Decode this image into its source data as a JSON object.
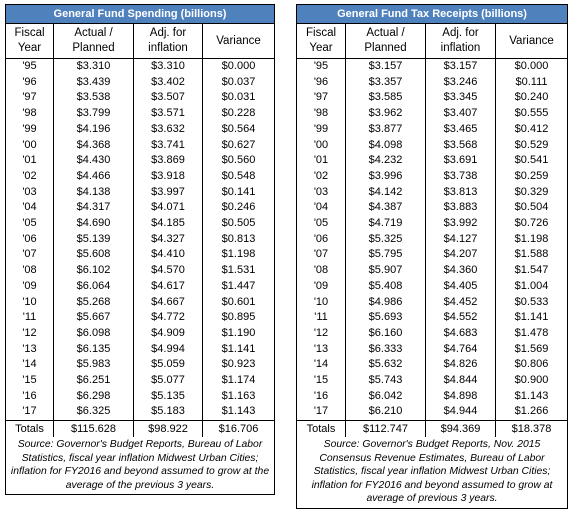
{
  "spending": {
    "title": "General Fund Spending (billions)",
    "headers": [
      "Fiscal Year",
      "Actual / Planned",
      "Adj. for inflation",
      "Variance"
    ],
    "rows": [
      [
        "'95",
        "$3.310",
        "$3.310",
        "$0.000"
      ],
      [
        "'96",
        "$3.439",
        "$3.402",
        "$0.037"
      ],
      [
        "'97",
        "$3.538",
        "$3.507",
        "$0.031"
      ],
      [
        "'98",
        "$3.799",
        "$3.571",
        "$0.228"
      ],
      [
        "'99",
        "$4.196",
        "$3.632",
        "$0.564"
      ],
      [
        "'00",
        "$4.368",
        "$3.741",
        "$0.627"
      ],
      [
        "'01",
        "$4.430",
        "$3.869",
        "$0.560"
      ],
      [
        "'02",
        "$4.466",
        "$3.918",
        "$0.548"
      ],
      [
        "'03",
        "$4.138",
        "$3.997",
        "$0.141"
      ],
      [
        "'04",
        "$4.317",
        "$4.071",
        "$0.246"
      ],
      [
        "'05",
        "$4.690",
        "$4.185",
        "$0.505"
      ],
      [
        "'06",
        "$5.139",
        "$4.327",
        "$0.813"
      ],
      [
        "'07",
        "$5.608",
        "$4.410",
        "$1.198"
      ],
      [
        "'08",
        "$6.102",
        "$4.570",
        "$1.531"
      ],
      [
        "'09",
        "$6.064",
        "$4.617",
        "$1.447"
      ],
      [
        "'10",
        "$5.268",
        "$4.667",
        "$0.601"
      ],
      [
        "'11",
        "$5.667",
        "$4.772",
        "$0.895"
      ],
      [
        "'12",
        "$6.098",
        "$4.909",
        "$1.190"
      ],
      [
        "'13",
        "$6.135",
        "$4.994",
        "$1.141"
      ],
      [
        "'14",
        "$5.983",
        "$5.059",
        "$0.923"
      ],
      [
        "'15",
        "$6.251",
        "$5.077",
        "$1.174"
      ],
      [
        "'16",
        "$6.298",
        "$5.135",
        "$1.163"
      ],
      [
        "'17",
        "$6.325",
        "$5.183",
        "$1.143"
      ]
    ],
    "totals": [
      "Totals",
      "$115.628",
      "$98.922",
      "$16.706"
    ],
    "source": "Source: Governor's Budget Reports, Bureau of Labor Statistics, fiscal year inflation Midwest Urban Cities; inflation for FY2016 and beyond assumed to grow at the average of the previous 3 years."
  },
  "receipts": {
    "title": "General Fund Tax Receipts (billions)",
    "headers": [
      "Fiscal Year",
      "Actual / Planned",
      "Adj. for inflation",
      "Variance"
    ],
    "rows": [
      [
        "'95",
        "$3.157",
        "$3.157",
        "$0.000"
      ],
      [
        "'96",
        "$3.357",
        "$3.246",
        "$0.111"
      ],
      [
        "'97",
        "$3.585",
        "$3.345",
        "$0.240"
      ],
      [
        "'98",
        "$3.962",
        "$3.407",
        "$0.555"
      ],
      [
        "'99",
        "$3.877",
        "$3.465",
        "$0.412"
      ],
      [
        "'00",
        "$4.098",
        "$3.568",
        "$0.529"
      ],
      [
        "'01",
        "$4.232",
        "$3.691",
        "$0.541"
      ],
      [
        "'02",
        "$3.996",
        "$3.738",
        "$0.259"
      ],
      [
        "'03",
        "$4.142",
        "$3.813",
        "$0.329"
      ],
      [
        "'04",
        "$4.387",
        "$3.883",
        "$0.504"
      ],
      [
        "'05",
        "$4.719",
        "$3.992",
        "$0.726"
      ],
      [
        "'06",
        "$5.325",
        "$4.127",
        "$1.198"
      ],
      [
        "'07",
        "$5.795",
        "$4.207",
        "$1.588"
      ],
      [
        "'08",
        "$5.907",
        "$4.360",
        "$1.547"
      ],
      [
        "'09",
        "$5.408",
        "$4.405",
        "$1.004"
      ],
      [
        "'10",
        "$4.986",
        "$4.452",
        "$0.533"
      ],
      [
        "'11",
        "$5.693",
        "$4.552",
        "$1.141"
      ],
      [
        "'12",
        "$6.160",
        "$4.683",
        "$1.478"
      ],
      [
        "'13",
        "$6.333",
        "$4.764",
        "$1.569"
      ],
      [
        "'14",
        "$5.632",
        "$4.826",
        "$0.806"
      ],
      [
        "'15",
        "$5.743",
        "$4.844",
        "$0.900"
      ],
      [
        "'16",
        "$6.042",
        "$4.898",
        "$1.143"
      ],
      [
        "'17",
        "$6.210",
        "$4.944",
        "$1.266"
      ]
    ],
    "totals": [
      "Totals",
      "$112.747",
      "$94.369",
      "$18.378"
    ],
    "source": "Source: Governor's Budget Reports, Nov. 2015 Consensus Revenue Estimates, Bureau of Labor Statistics, fiscal year inflation Midwest Urban Cities; inflation for FY2016 and beyond assumed to grow at average of previous 3 years."
  },
  "colors": {
    "title_bg": "#4f81bd",
    "title_fg": "#ffffff"
  }
}
